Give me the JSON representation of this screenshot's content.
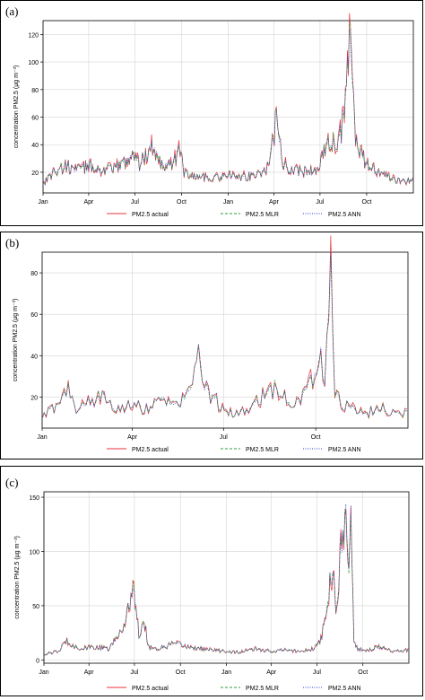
{
  "figure": {
    "panels": [
      {
        "label": "(a)"
      },
      {
        "label": "(b)"
      },
      {
        "label": "(c)"
      }
    ]
  },
  "colors": {
    "actual": "#e8323c",
    "mlr": "#2e9b3a",
    "ann": "#2b3fd1",
    "grid": "#d4d4d4"
  },
  "chart_data": [
    {
      "type": "line",
      "ylabel": "concentration PM2.5 (µg m⁻³)",
      "x_tick_labels": [
        "Jan",
        "Apr",
        "Jul",
        "Oct",
        "Jan",
        "Apr",
        "Jul",
        "Oct"
      ],
      "x_tick_days": [
        0,
        90,
        181,
        273,
        365,
        455,
        546,
        638
      ],
      "x_range_days": [
        0,
        730
      ],
      "ylim": [
        5,
        130
      ],
      "yticks": [
        20,
        40,
        60,
        80,
        100,
        120
      ],
      "grid": true,
      "legend": "bottom",
      "series": [
        {
          "name": "PM2.5 actual",
          "style": "solid",
          "color_key": "actual"
        },
        {
          "name": "PM2.5 MLR",
          "style": "dashed",
          "color_key": "mlr"
        },
        {
          "name": "PM2.5 ANN",
          "style": "dotted",
          "color_key": "ann"
        }
      ],
      "shape": {
        "x": [
          0,
          20,
          45,
          70,
          95,
          115,
          135,
          165,
          178,
          190,
          200,
          215,
          230,
          255,
          270,
          278,
          300,
          330,
          360,
          380,
          400,
          420,
          440,
          450,
          460,
          470,
          480,
          500,
          520,
          540,
          555,
          565,
          575,
          585,
          595,
          600,
          605,
          610,
          615,
          620,
          630,
          640,
          660,
          690,
          710,
          730
        ],
        "y": [
          12,
          20,
          24,
          22,
          25,
          21,
          22,
          28,
          35,
          26,
          30,
          40,
          28,
          25,
          38,
          20,
          17,
          16,
          17,
          18,
          17,
          18,
          22,
          35,
          58,
          30,
          24,
          22,
          20,
          22,
          35,
          42,
          40,
          45,
          65,
          95,
          122,
          85,
          50,
          40,
          30,
          25,
          20,
          15,
          13,
          15
        ]
      }
    },
    {
      "type": "line",
      "ylabel": "concentration PM2.5 (µg m⁻³)",
      "x_tick_labels": [
        "Jan",
        "Apr",
        "Jul",
        "Oct"
      ],
      "x_tick_days": [
        0,
        90,
        181,
        273
      ],
      "x_range_days": [
        0,
        365
      ],
      "ylim": [
        5,
        90
      ],
      "yticks": [
        20,
        40,
        60,
        80
      ],
      "grid": true,
      "legend": "bottom",
      "series": [
        {
          "name": "PM2.5 actual",
          "style": "solid",
          "color_key": "actual"
        },
        {
          "name": "PM2.5 MLR",
          "style": "dashed",
          "color_key": "mlr"
        },
        {
          "name": "PM2.5 ANN",
          "style": "dotted",
          "color_key": "ann"
        }
      ],
      "shape": {
        "x": [
          0,
          10,
          20,
          25,
          35,
          50,
          60,
          75,
          90,
          100,
          110,
          120,
          135,
          145,
          150,
          155,
          160,
          170,
          180,
          195,
          210,
          225,
          232,
          245,
          255,
          262,
          270,
          278,
          282,
          285,
          288,
          292,
          300,
          320,
          340,
          355,
          365
        ],
        "y": [
          10,
          14,
          18,
          26,
          14,
          18,
          20,
          15,
          17,
          14,
          16,
          20,
          15,
          22,
          25,
          50,
          24,
          20,
          14,
          12,
          16,
          22,
          25,
          18,
          17,
          22,
          30,
          40,
          28,
          60,
          82,
          22,
          16,
          12,
          14,
          12,
          13
        ]
      }
    },
    {
      "type": "line",
      "ylabel": "concentration PM2.5 (µg m⁻³)",
      "x_tick_labels": [
        "Jan",
        "Apr",
        "Jul",
        "Oct",
        "Jan",
        "Apr",
        "Jul",
        "Oct"
      ],
      "x_tick_days": [
        0,
        90,
        181,
        273,
        365,
        455,
        546,
        638
      ],
      "x_range_days": [
        0,
        730
      ],
      "ylim": [
        -3,
        155
      ],
      "yticks": [
        0,
        50,
        100,
        150
      ],
      "grid": true,
      "legend": "bottom",
      "series": [
        {
          "name": "PM2.5 actual",
          "style": "solid",
          "color_key": "actual"
        },
        {
          "name": "PM2.5 MLR",
          "style": "dashed",
          "color_key": "mlr"
        },
        {
          "name": "PM2.5 ANN",
          "style": "dotted",
          "color_key": "ann"
        }
      ],
      "shape": {
        "x": [
          0,
          30,
          45,
          70,
          100,
          130,
          160,
          170,
          180,
          190,
          200,
          210,
          230,
          260,
          290,
          320,
          360,
          390,
          420,
          450,
          480,
          510,
          540,
          555,
          565,
          575,
          585,
          595,
          605,
          610,
          615,
          620,
          630,
          645,
          670,
          700,
          730
        ],
        "y": [
          5,
          8,
          18,
          10,
          12,
          10,
          30,
          55,
          62,
          25,
          35,
          12,
          10,
          15,
          12,
          10,
          8,
          7,
          10,
          8,
          9,
          8,
          10,
          20,
          40,
          85,
          50,
          110,
          135,
          80,
          140,
          15,
          10,
          9,
          12,
          8,
          9
        ]
      }
    }
  ]
}
